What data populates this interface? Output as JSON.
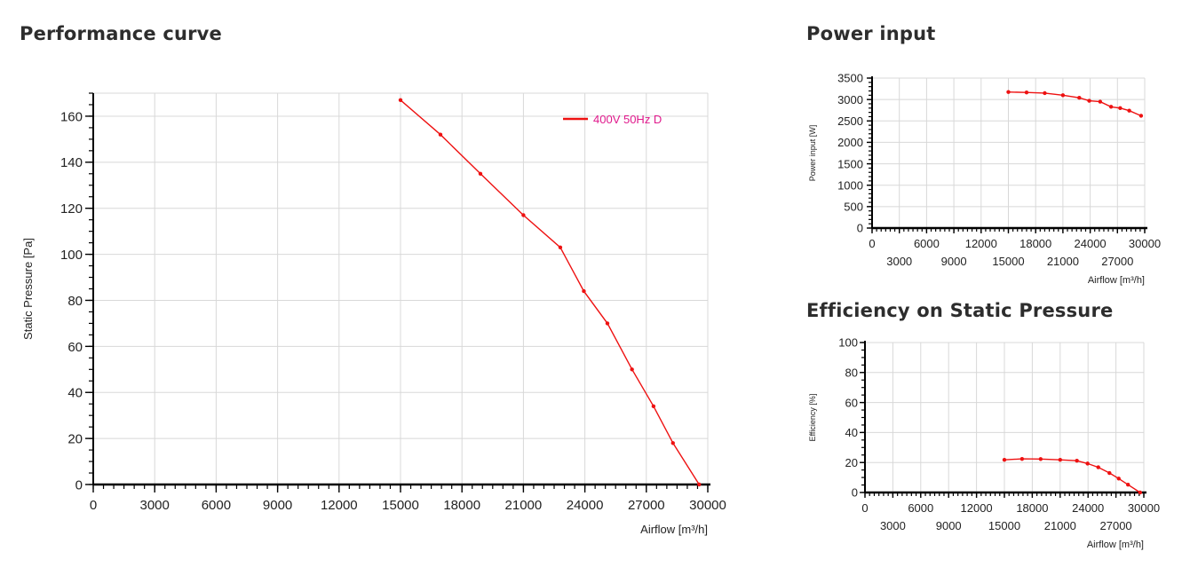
{
  "headings": {
    "performance": "Performance curve",
    "power": "Power input",
    "efficiency": "Efficiency on Static Pressure"
  },
  "colors": {
    "curve": "#ee1111",
    "grid": "#d8d8d8",
    "legend_text": "#e0198c"
  },
  "chart_data": [
    {
      "type": "line",
      "title": "Performance curve",
      "xlabel": "Airflow [m³/h]",
      "ylabel": "Static Pressure [Pa]",
      "xlim": [
        0,
        30000
      ],
      "ylim": [
        0,
        170
      ],
      "x_ticks": [
        0,
        3000,
        6000,
        9000,
        12000,
        15000,
        18000,
        21000,
        24000,
        27000,
        30000
      ],
      "y_ticks": [
        0,
        20,
        40,
        60,
        80,
        100,
        120,
        140,
        160
      ],
      "legend_position": "top-right",
      "grid": true,
      "series": [
        {
          "name": "400V 50Hz D",
          "x": [
            15000,
            16950,
            18900,
            21000,
            22800,
            23950,
            25100,
            26300,
            27350,
            28300,
            29580
          ],
          "y": [
            167,
            152,
            135,
            117,
            103,
            84,
            70,
            50,
            34,
            18,
            0
          ]
        }
      ]
    },
    {
      "type": "line",
      "title": "Power input",
      "xlabel": "Airflow [m³/h]",
      "ylabel": "Power input [W]",
      "xlim": [
        0,
        30000
      ],
      "ylim": [
        0,
        3500
      ],
      "x_ticks_upper": [
        0,
        6000,
        12000,
        18000,
        24000,
        30000
      ],
      "x_ticks_lower": [
        3000,
        9000,
        15000,
        21000,
        27000
      ],
      "y_ticks": [
        0,
        500,
        1000,
        1500,
        2000,
        2500,
        3000,
        3500
      ],
      "grid": true,
      "series": [
        {
          "x": [
            15000,
            17000,
            19000,
            21000,
            22800,
            23900,
            25100,
            26300,
            27300,
            28300,
            29600
          ],
          "y": [
            3175,
            3165,
            3150,
            3100,
            3040,
            2970,
            2950,
            2830,
            2800,
            2740,
            2620
          ]
        }
      ]
    },
    {
      "type": "line",
      "title": "Efficiency on Static Pressure",
      "xlabel": "Airflow [m³/h]",
      "ylabel": "Efficiency [%]",
      "xlim": [
        0,
        30000
      ],
      "ylim": [
        0,
        100
      ],
      "x_ticks_upper": [
        0,
        6000,
        12000,
        18000,
        24000,
        30000
      ],
      "x_ticks_lower": [
        3000,
        9000,
        15000,
        21000,
        27000
      ],
      "y_ticks": [
        0,
        20,
        40,
        60,
        80,
        100
      ],
      "grid": true,
      "series": [
        {
          "x": [
            15000,
            16900,
            18900,
            21000,
            22800,
            23950,
            25100,
            26300,
            27300,
            28300,
            29600
          ],
          "y": [
            21.8,
            22.4,
            22.3,
            21.8,
            21.2,
            19.3,
            16.8,
            13.0,
            9.3,
            5.2,
            0
          ]
        }
      ]
    }
  ]
}
